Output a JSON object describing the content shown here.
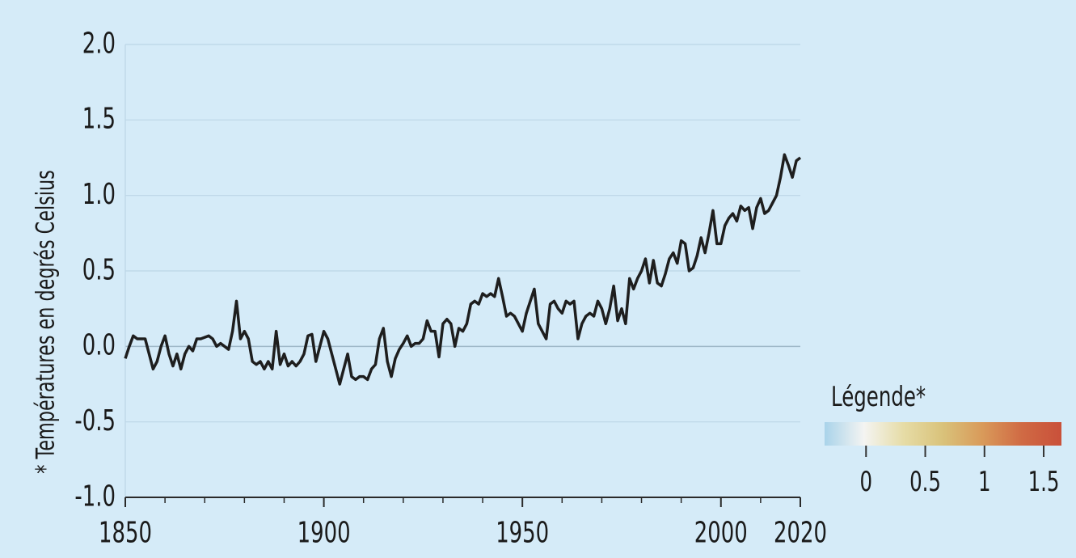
{
  "chart_data": {
    "type": "line",
    "y_label": "* Températures en degrés Celsius",
    "x": [
      1850,
      1851,
      1852,
      1853,
      1854,
      1855,
      1856,
      1857,
      1858,
      1859,
      1860,
      1861,
      1862,
      1863,
      1864,
      1865,
      1866,
      1867,
      1868,
      1869,
      1870,
      1871,
      1872,
      1873,
      1874,
      1875,
      1876,
      1877,
      1878,
      1879,
      1880,
      1881,
      1882,
      1883,
      1884,
      1885,
      1886,
      1887,
      1888,
      1889,
      1890,
      1891,
      1892,
      1893,
      1894,
      1895,
      1896,
      1897,
      1898,
      1899,
      1900,
      1901,
      1902,
      1903,
      1904,
      1905,
      1906,
      1907,
      1908,
      1909,
      1910,
      1911,
      1912,
      1913,
      1914,
      1915,
      1916,
      1917,
      1918,
      1919,
      1920,
      1921,
      1922,
      1923,
      1924,
      1925,
      1926,
      1927,
      1928,
      1929,
      1930,
      1931,
      1932,
      1933,
      1934,
      1935,
      1936,
      1937,
      1938,
      1939,
      1940,
      1941,
      1942,
      1943,
      1944,
      1945,
      1946,
      1947,
      1948,
      1949,
      1950,
      1951,
      1952,
      1953,
      1954,
      1955,
      1956,
      1957,
      1958,
      1959,
      1960,
      1961,
      1962,
      1963,
      1964,
      1965,
      1966,
      1967,
      1968,
      1969,
      1970,
      1971,
      1972,
      1973,
      1974,
      1975,
      1976,
      1977,
      1978,
      1979,
      1980,
      1981,
      1982,
      1983,
      1984,
      1985,
      1986,
      1987,
      1988,
      1989,
      1990,
      1991,
      1992,
      1993,
      1994,
      1995,
      1996,
      1997,
      1998,
      1999,
      2000,
      2001,
      2002,
      2003,
      2004,
      2005,
      2006,
      2007,
      2008,
      2009,
      2010,
      2011,
      2012,
      2013,
      2014,
      2015,
      2016,
      2017,
      2018,
      2019,
      2020
    ],
    "values": [
      -0.08,
      0,
      0.07,
      0.05,
      0.05,
      0.05,
      -0.05,
      -0.15,
      -0.1,
      0,
      0.07,
      -0.05,
      -0.13,
      -0.05,
      -0.15,
      -0.05,
      0,
      -0.03,
      0.05,
      0.05,
      0.06,
      0.07,
      0.05,
      0,
      0.02,
      0,
      -0.02,
      0.1,
      0.3,
      0.05,
      0.1,
      0.05,
      -0.1,
      -0.12,
      -0.1,
      -0.15,
      -0.1,
      -0.15,
      0.1,
      -0.12,
      -0.05,
      -0.13,
      -0.1,
      -0.13,
      -0.1,
      -0.05,
      0.07,
      0.08,
      -0.1,
      0,
      0.1,
      0.05,
      -0.05,
      -0.15,
      -0.25,
      -0.15,
      -0.05,
      -0.2,
      -0.22,
      -0.2,
      -0.2,
      -0.22,
      -0.15,
      -0.12,
      0.05,
      0.12,
      -0.1,
      -0.2,
      -0.08,
      -0.02,
      0.02,
      0.07,
      0,
      0.02,
      0.02,
      0.05,
      0.17,
      0.1,
      0.1,
      -0.07,
      0.15,
      0.18,
      0.15,
      0,
      0.12,
      0.1,
      0.15,
      0.28,
      0.3,
      0.28,
      0.35,
      0.33,
      0.35,
      0.33,
      0.45,
      0.33,
      0.2,
      0.22,
      0.2,
      0.15,
      0.1,
      0.22,
      0.3,
      0.38,
      0.15,
      0.1,
      0.05,
      0.28,
      0.3,
      0.25,
      0.22,
      0.3,
      0.28,
      0.3,
      0.05,
      0.15,
      0.2,
      0.22,
      0.2,
      0.3,
      0.25,
      0.15,
      0.25,
      0.4,
      0.17,
      0.25,
      0.15,
      0.45,
      0.38,
      0.45,
      0.5,
      0.58,
      0.42,
      0.57,
      0.42,
      0.4,
      0.48,
      0.58,
      0.62,
      0.55,
      0.7,
      0.68,
      0.5,
      0.52,
      0.6,
      0.72,
      0.62,
      0.75,
      0.9,
      0.68,
      0.68,
      0.8,
      0.85,
      0.88,
      0.83,
      0.93,
      0.9,
      0.92,
      0.78,
      0.92,
      0.98,
      0.88,
      0.9,
      0.95,
      1.0,
      1.12,
      1.27,
      1.2,
      1.12,
      1.23,
      1.25
    ],
    "color": "#1e1e1e",
    "xlim": [
      1850,
      2020
    ],
    "xticks": [
      1850,
      1900,
      1950,
      2000,
      2020
    ],
    "xminorticks": [
      1860,
      1870,
      1880,
      1890,
      1910,
      1920,
      1930,
      1940,
      1960,
      1970,
      1980,
      1990,
      2010
    ],
    "ylim": [
      -1.0,
      2.0
    ],
    "yticks": [
      {
        "value": 2.0,
        "label": "2.0"
      },
      {
        "value": 1.5,
        "label": "1.5"
      },
      {
        "value": 1.0,
        "label": "1.0"
      },
      {
        "value": 0.5,
        "label": "0.5"
      },
      {
        "value": 0.0,
        "label": "0.0"
      },
      {
        "value": -0.5,
        "label": "-0.5"
      },
      {
        "value": -1.0,
        "label": "-1.0"
      }
    ],
    "grid": true,
    "legend": {
      "title": "Légende*",
      "range": [
        -0.35,
        1.65
      ],
      "ticks": [
        0,
        0.5,
        1,
        1.5
      ],
      "colors": [
        "#a9d3ea",
        "#f4f4f2",
        "#e6dca6",
        "#d9c27a",
        "#d99a5a",
        "#d06a44",
        "#c9503a"
      ]
    }
  }
}
